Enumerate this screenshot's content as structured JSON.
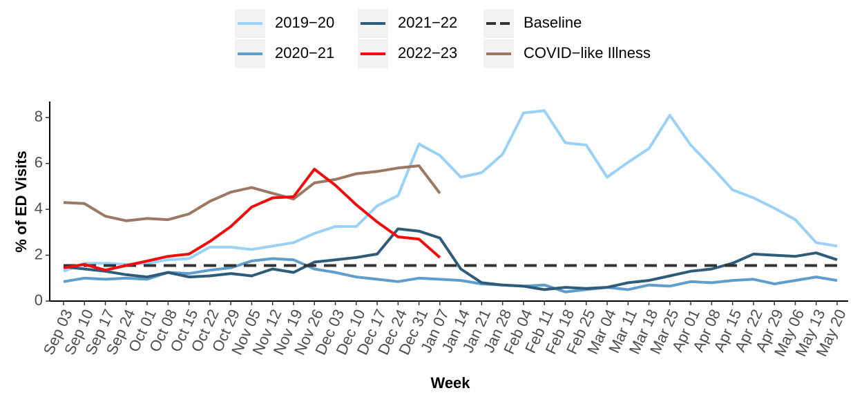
{
  "chart_data": {
    "type": "line",
    "x_label": "Week",
    "y_label": "% of ED Visits",
    "categories": [
      "Sep 03",
      "Sep 10",
      "Sep 17",
      "Sep 24",
      "Oct 01",
      "Oct 08",
      "Oct 15",
      "Oct 22",
      "Oct 29",
      "Nov 05",
      "Nov 12",
      "Nov 19",
      "Nov 26",
      "Dec 03",
      "Dec 10",
      "Dec 17",
      "Dec 24",
      "Dec 31",
      "Jan 07",
      "Jan 14",
      "Jan 21",
      "Jan 28",
      "Feb 04",
      "Feb 11",
      "Feb 18",
      "Feb 25",
      "Mar 04",
      "Mar 11",
      "Mar 18",
      "Mar 25",
      "Apr 01",
      "Apr 08",
      "Apr 15",
      "Apr 22",
      "Apr 29",
      "May 06",
      "May 13",
      "May 20"
    ],
    "series": [
      {
        "name": "2019−20",
        "color": "#99d1f7",
        "values": [
          1.3,
          1.65,
          1.65,
          1.6,
          1.65,
          1.8,
          1.85,
          2.35,
          2.35,
          2.25,
          2.4,
          2.55,
          2.95,
          3.25,
          3.25,
          4.15,
          4.6,
          6.85,
          6.35,
          5.4,
          5.6,
          6.4,
          8.2,
          8.3,
          6.9,
          6.8,
          5.4,
          6.05,
          6.65,
          8.1,
          6.8,
          5.85,
          4.85,
          4.5,
          4.05,
          3.55,
          2.55,
          2.4
        ]
      },
      {
        "name": "2020−21",
        "color": "#5f9dcc",
        "values": [
          0.85,
          1.0,
          0.95,
          1.0,
          0.95,
          1.25,
          1.2,
          1.35,
          1.45,
          1.75,
          1.85,
          1.8,
          1.4,
          1.25,
          1.05,
          0.95,
          0.85,
          1.0,
          0.95,
          0.9,
          0.75,
          0.7,
          0.65,
          0.7,
          0.4,
          0.5,
          0.6,
          0.5,
          0.7,
          0.65,
          0.85,
          0.8,
          0.9,
          0.95,
          0.75,
          0.9,
          1.05,
          0.9
        ]
      },
      {
        "name": "2021−22",
        "color": "#2f5b7b",
        "values": [
          1.5,
          1.4,
          1.3,
          1.15,
          1.05,
          1.25,
          1.05,
          1.1,
          1.2,
          1.1,
          1.4,
          1.25,
          1.7,
          1.8,
          1.9,
          2.05,
          3.15,
          3.05,
          2.75,
          1.4,
          0.8,
          0.7,
          0.65,
          0.5,
          0.6,
          0.55,
          0.6,
          0.8,
          0.9,
          1.1,
          1.3,
          1.4,
          1.65,
          2.05,
          2.0,
          1.95,
          2.1,
          1.8
        ]
      },
      {
        "name": "2022−23",
        "color": "#f20d0d",
        "values": [
          1.45,
          1.6,
          1.35,
          1.55,
          1.75,
          1.95,
          2.05,
          2.6,
          3.25,
          4.1,
          4.5,
          4.55,
          5.75,
          5.05,
          4.2,
          3.45,
          2.8,
          2.7,
          1.9,
          null,
          null,
          null,
          null,
          null,
          null,
          null,
          null,
          null,
          null,
          null,
          null,
          null,
          null,
          null,
          null,
          null,
          null,
          null
        ]
      },
      {
        "name": "Baseline",
        "color": "#333333",
        "dashed": true,
        "values": [
          1.55,
          1.55,
          1.55,
          1.55,
          1.55,
          1.55,
          1.55,
          1.55,
          1.55,
          1.55,
          1.55,
          1.55,
          1.55,
          1.55,
          1.55,
          1.55,
          1.55,
          1.55,
          1.55,
          1.55,
          1.55,
          1.55,
          1.55,
          1.55,
          1.55,
          1.55,
          1.55,
          1.55,
          1.55,
          1.55,
          1.55,
          1.55,
          1.55,
          1.55,
          1.55,
          1.55,
          1.55,
          1.55
        ]
      },
      {
        "name": "COVID−like Illness",
        "color": "#9b7862",
        "values": [
          4.3,
          4.25,
          3.7,
          3.5,
          3.6,
          3.55,
          3.8,
          4.35,
          4.75,
          4.95,
          4.7,
          4.45,
          5.15,
          5.3,
          5.55,
          5.65,
          5.8,
          5.9,
          4.7,
          null,
          null,
          null,
          null,
          null,
          null,
          null,
          null,
          null,
          null,
          null,
          null,
          null,
          null,
          null,
          null,
          null,
          null,
          null
        ]
      }
    ],
    "ylim": [
      0,
      8.7
    ],
    "yticks": [
      0,
      2,
      4,
      6,
      8
    ],
    "grid": false,
    "legend": "top"
  }
}
